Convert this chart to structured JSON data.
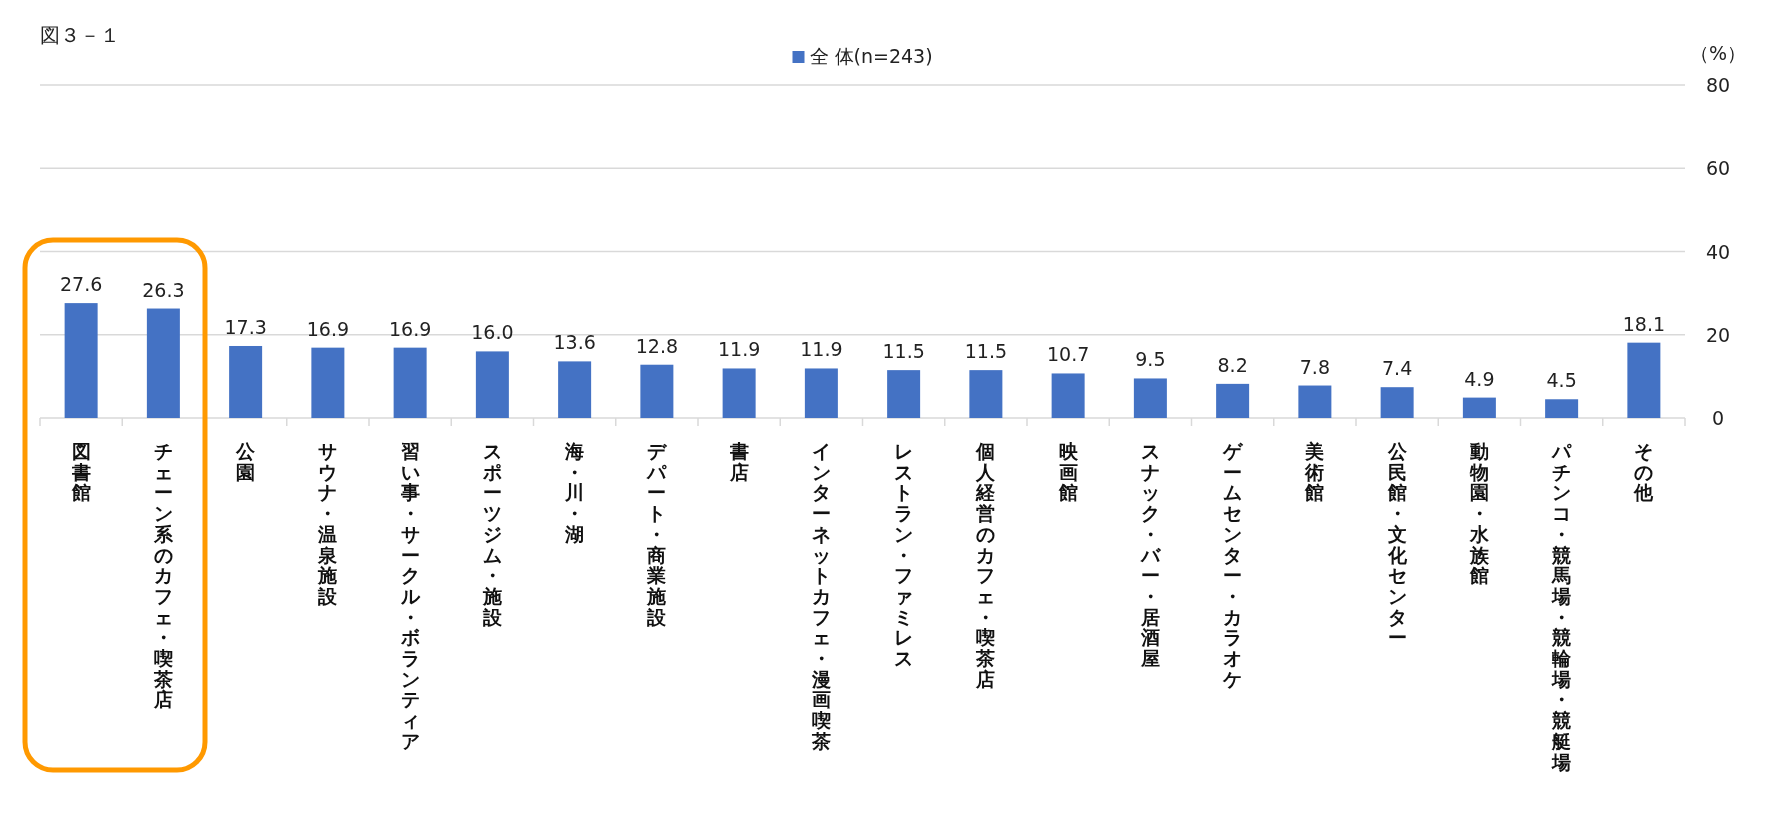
{
  "chart_data": {
    "type": "bar",
    "title": "図３－１",
    "ylabel": "（%）",
    "categories": [
      "図書館",
      "チェーン系のカフェ・喫茶店",
      "公園",
      "サウナ・温泉施設",
      "習い事・サークル・ボランティア",
      "スポーツジム・施設",
      "海・川・湖",
      "デパート・商業施設",
      "書店",
      "インターネットカフェ・漫画喫茶",
      "レストラン・ファミレス",
      "個人経営のカフェ・喫茶店",
      "映画館",
      "スナック・バー・居酒屋",
      "ゲームセンター・カラオケ",
      "美術館",
      "公民館・文化センター",
      "動物園・水族館",
      "パチンコ・競馬場・競輪場・競艇場",
      "その他"
    ],
    "series": [
      {
        "name": "全 体(n=243)",
        "color": "#4472c4",
        "values": [
          27.6,
          26.3,
          17.3,
          16.9,
          16.9,
          16.0,
          13.6,
          12.8,
          11.9,
          11.9,
          11.5,
          11.5,
          10.7,
          9.5,
          8.2,
          7.8,
          7.4,
          4.9,
          4.5,
          18.1
        ],
        "value_labels": [
          "27.6",
          "26.3",
          "17.3",
          "16.9",
          "16.9",
          "16.0",
          "13.6",
          "12.8",
          "11.9",
          "11.9",
          "11.5",
          "11.5",
          "10.7",
          "9.5",
          "8.2",
          "7.8",
          "7.4",
          "4.9",
          "4.5",
          "18.1"
        ]
      }
    ],
    "ylim": [
      0,
      80
    ],
    "yticks": [
      0,
      20,
      40,
      60,
      80
    ],
    "grid": "y",
    "legend": "top"
  }
}
